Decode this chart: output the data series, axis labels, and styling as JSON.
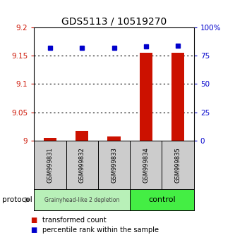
{
  "title": "GDS5113 / 10519270",
  "samples": [
    "GSM999831",
    "GSM999832",
    "GSM999833",
    "GSM999834",
    "GSM999835"
  ],
  "red_bars": [
    9.005,
    9.018,
    9.007,
    9.155,
    9.155
  ],
  "blue_dots": [
    82,
    82,
    82,
    83,
    84
  ],
  "ylim_left": [
    9.0,
    9.2
  ],
  "ylim_right": [
    0,
    100
  ],
  "yticks_left": [
    9.0,
    9.05,
    9.1,
    9.15,
    9.2
  ],
  "yticks_right": [
    0,
    25,
    50,
    75,
    100
  ],
  "ytick_labels_left": [
    "9",
    "9.05",
    "9.1",
    "9.15",
    "9.2"
  ],
  "ytick_labels_right": [
    "0",
    "25",
    "50",
    "75",
    "100%"
  ],
  "hlines": [
    9.05,
    9.1,
    9.15
  ],
  "group1_n": 3,
  "group2_n": 2,
  "group1_label": "Grainyhead-like 2 depletion",
  "group2_label": "control",
  "group1_color": "#b8f0b8",
  "group2_color": "#44ee44",
  "protocol_label": "protocol",
  "legend_red": "transformed count",
  "legend_blue": "percentile rank within the sample",
  "bar_color": "#cc1100",
  "dot_color": "#0000cc",
  "sample_box_color": "#cccccc"
}
